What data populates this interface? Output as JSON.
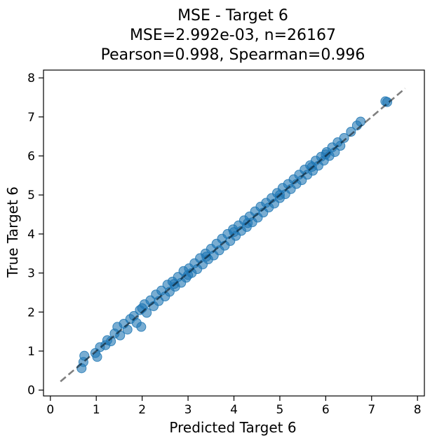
{
  "chart_data": {
    "type": "scatter",
    "title_lines": [
      "MSE - Target 6",
      "MSE=2.992e-03, n=26167",
      "Pearson=0.998, Spearman=0.996"
    ],
    "xlabel": "Predicted Target 6",
    "ylabel": "True Target 6",
    "xlim": [
      -0.15,
      8.15
    ],
    "ylim": [
      -0.15,
      8.2
    ],
    "xticks": [
      0,
      1,
      2,
      3,
      4,
      5,
      6,
      7,
      8
    ],
    "yticks": [
      0,
      1,
      2,
      3,
      4,
      5,
      6,
      7,
      8
    ],
    "xtick_labels": [
      "0",
      "1",
      "2",
      "3",
      "4",
      "5",
      "6",
      "7",
      "8"
    ],
    "ytick_labels": [
      "0",
      "1",
      "2",
      "3",
      "4",
      "5",
      "6",
      "7",
      "8"
    ],
    "grid": false,
    "legend": false,
    "point_color": "#1f77b4",
    "reference_line": {
      "from": [
        0.22,
        0.22
      ],
      "to": [
        7.73,
        7.73
      ],
      "color": "#000000",
      "style": "dashed"
    },
    "points": [
      [
        0.68,
        0.56
      ],
      [
        0.72,
        0.72
      ],
      [
        0.74,
        0.88
      ],
      [
        0.98,
        0.95
      ],
      [
        1.02,
        0.85
      ],
      [
        1.08,
        1.1
      ],
      [
        1.2,
        1.15
      ],
      [
        1.24,
        1.28
      ],
      [
        1.32,
        1.25
      ],
      [
        1.4,
        1.45
      ],
      [
        1.46,
        1.62
      ],
      [
        1.52,
        1.4
      ],
      [
        1.6,
        1.7
      ],
      [
        1.68,
        1.55
      ],
      [
        1.74,
        1.82
      ],
      [
        1.82,
        1.9
      ],
      [
        1.88,
        1.72
      ],
      [
        1.95,
        2.05
      ],
      [
        1.98,
        1.62
      ],
      [
        2.05,
        2.2
      ],
      [
        2.1,
        1.98
      ],
      [
        2.18,
        2.3
      ],
      [
        2.25,
        2.15
      ],
      [
        2.3,
        2.45
      ],
      [
        2.36,
        2.28
      ],
      [
        2.42,
        2.55
      ],
      [
        2.5,
        2.4
      ],
      [
        2.55,
        2.7
      ],
      [
        2.6,
        2.52
      ],
      [
        2.66,
        2.78
      ],
      [
        2.72,
        2.65
      ],
      [
        2.78,
        2.9
      ],
      [
        2.85,
        2.75
      ],
      [
        2.9,
        3.05
      ],
      [
        2.96,
        2.88
      ],
      [
        3.02,
        3.12
      ],
      [
        3.08,
        3.0
      ],
      [
        3.14,
        3.25
      ],
      [
        3.2,
        3.1
      ],
      [
        3.26,
        3.38
      ],
      [
        3.32,
        3.22
      ],
      [
        3.38,
        3.5
      ],
      [
        3.44,
        3.35
      ],
      [
        3.5,
        3.62
      ],
      [
        3.56,
        3.45
      ],
      [
        3.62,
        3.75
      ],
      [
        3.68,
        3.58
      ],
      [
        3.74,
        3.88
      ],
      [
        3.8,
        3.7
      ],
      [
        3.86,
        4.0
      ],
      [
        3.92,
        3.82
      ],
      [
        3.98,
        4.12
      ],
      [
        4.04,
        3.95
      ],
      [
        4.1,
        4.22
      ],
      [
        4.16,
        4.08
      ],
      [
        4.22,
        4.35
      ],
      [
        4.28,
        4.18
      ],
      [
        4.34,
        4.45
      ],
      [
        4.4,
        4.3
      ],
      [
        4.46,
        4.58
      ],
      [
        4.52,
        4.42
      ],
      [
        4.58,
        4.7
      ],
      [
        4.64,
        4.55
      ],
      [
        4.7,
        4.8
      ],
      [
        4.76,
        4.68
      ],
      [
        4.82,
        4.92
      ],
      [
        4.88,
        4.78
      ],
      [
        4.94,
        5.05
      ],
      [
        5.0,
        4.92
      ],
      [
        5.06,
        5.18
      ],
      [
        5.12,
        5.02
      ],
      [
        5.18,
        5.28
      ],
      [
        5.24,
        5.15
      ],
      [
        5.3,
        5.4
      ],
      [
        5.36,
        5.28
      ],
      [
        5.42,
        5.52
      ],
      [
        5.48,
        5.38
      ],
      [
        5.54,
        5.65
      ],
      [
        5.6,
        5.52
      ],
      [
        5.66,
        5.76
      ],
      [
        5.72,
        5.62
      ],
      [
        5.78,
        5.88
      ],
      [
        5.84,
        5.75
      ],
      [
        5.9,
        5.98
      ],
      [
        5.96,
        5.88
      ],
      [
        6.02,
        6.1
      ],
      [
        6.08,
        6.0
      ],
      [
        6.14,
        6.22
      ],
      [
        6.2,
        6.1
      ],
      [
        6.26,
        6.35
      ],
      [
        6.32,
        6.26
      ],
      [
        6.4,
        6.46
      ],
      [
        6.55,
        6.62
      ],
      [
        6.68,
        6.78
      ],
      [
        6.76,
        6.88
      ],
      [
        7.3,
        7.4
      ],
      [
        7.34,
        7.38
      ],
      [
        2.0,
        2.1
      ],
      [
        3.0,
        2.95
      ],
      [
        4.0,
        4.05
      ],
      [
        5.0,
        5.0
      ],
      [
        4.3,
        4.28
      ],
      [
        3.4,
        3.42
      ],
      [
        2.7,
        2.72
      ],
      [
        5.7,
        5.72
      ],
      [
        6.0,
        6.04
      ]
    ]
  }
}
